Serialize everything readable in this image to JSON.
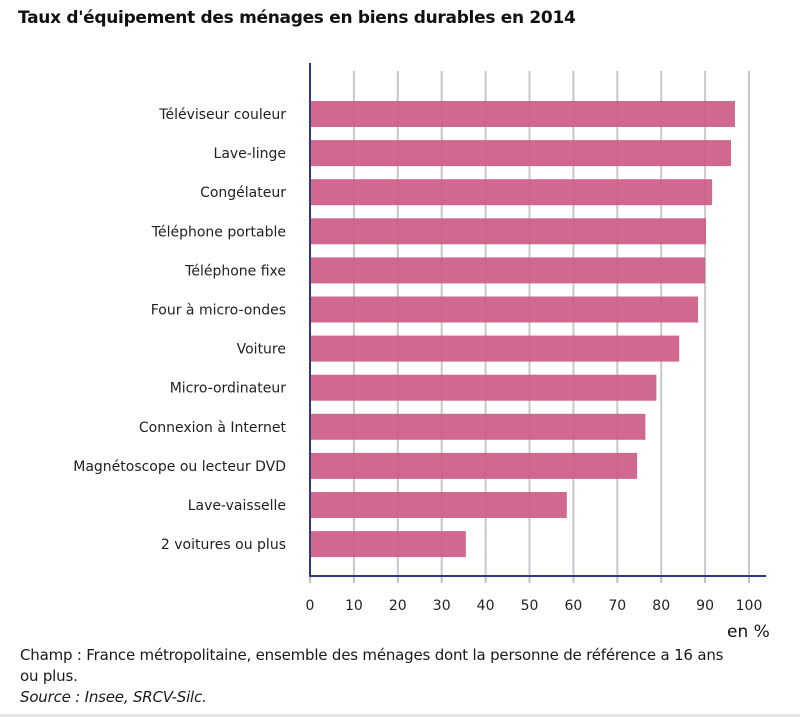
{
  "chart_data": {
    "type": "bar",
    "orientation": "horizontal",
    "title": "Taux d'équipement des ménages en biens durables en 2014",
    "categories": [
      "Téléviseur couleur",
      "Lave-linge",
      "Congélateur",
      "Téléphone portable",
      "Téléphone fixe",
      "Four à micro-ondes",
      "Voiture",
      "Micro-ordinateur",
      "Connexion à Internet",
      "Magnétoscope ou lecteur DVD",
      "Lave-vaisselle",
      "2 voitures ou plus"
    ],
    "values": [
      96.8,
      95.9,
      91.6,
      90.2,
      90.0,
      88.4,
      84.1,
      78.9,
      76.4,
      74.5,
      58.5,
      35.5
    ],
    "xlabel": "en %",
    "ylabel": "",
    "xlim": [
      0,
      100
    ],
    "xticks": [
      "0",
      "10",
      "20",
      "30",
      "40",
      "50",
      "60",
      "70",
      "80",
      "90",
      "100"
    ],
    "grid": true,
    "legend": "none",
    "bar_color": "#cc5c86",
    "axis_color": "#2b3a8f"
  },
  "notes": {
    "champ": "Champ : France métropolitaine, ensemble des ménages dont la personne de référence a 16 ans ou plus.",
    "source": "Source : Insee, SRCV-Silc."
  }
}
